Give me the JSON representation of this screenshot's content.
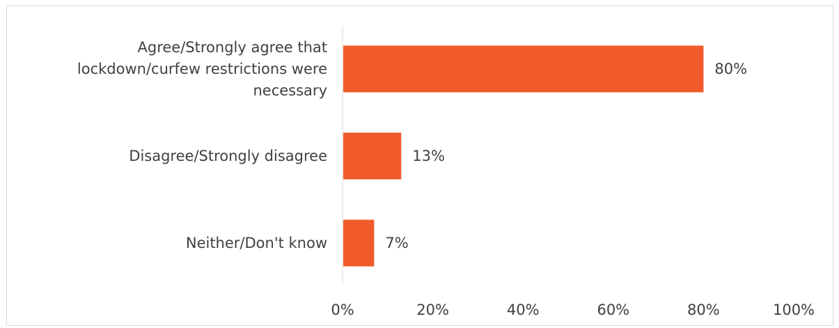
{
  "chart_data": {
    "type": "bar",
    "orientation": "horizontal",
    "categories": [
      [
        "Agree/Strongly agree that",
        "lockdown/curfew restrictions were",
        "necessary"
      ],
      [
        "Disagree/Strongly disagree"
      ],
      [
        "Neither/Don't know"
      ]
    ],
    "values": [
      80,
      13,
      7
    ],
    "data_labels": [
      "80%",
      "13%",
      "7%"
    ],
    "xlim": [
      0,
      100
    ],
    "x_ticks": [
      0,
      20,
      40,
      60,
      80,
      100
    ],
    "x_tick_labels": [
      "0%",
      "20%",
      "40%",
      "60%",
      "80%",
      "100%"
    ],
    "title": "",
    "xlabel": "",
    "ylabel": "",
    "grid": false,
    "legend": "none",
    "bar_color": "#f15a2b",
    "axis_color": "#d9d9d9",
    "text_color": "#404040"
  }
}
